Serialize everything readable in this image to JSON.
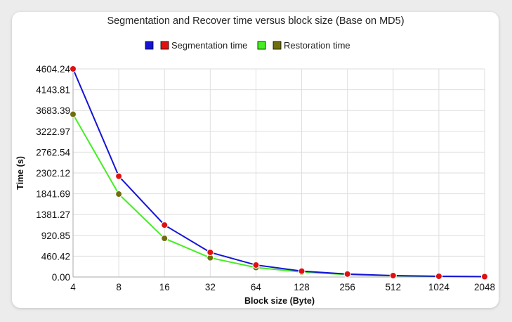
{
  "chart_data": {
    "type": "line",
    "title": "Segmentation and Recover time versus block size (Base on MD5)",
    "xlabel": "Block size (Byte)",
    "ylabel": "Time (s)",
    "categories": [
      "4",
      "8",
      "16",
      "32",
      "64",
      "128",
      "256",
      "512",
      "1024",
      "2048"
    ],
    "y_ticks": [
      "0.00",
      "460.42",
      "920.85",
      "1381.27",
      "1841.69",
      "2302.12",
      "2762.54",
      "3222.97",
      "3683.39",
      "4143.81",
      "4604.24"
    ],
    "ylim": [
      0,
      4604.24
    ],
    "grid": true,
    "legend_position": "top-center",
    "series": [
      {
        "name": "Segmentation time",
        "line_color": "#1414d4",
        "marker_color": "#e01010",
        "values": [
          4604.24,
          2230,
          1150,
          545,
          265,
          130,
          65,
          32,
          16,
          8
        ]
      },
      {
        "name": "Restoration time",
        "line_color": "#44ee22",
        "marker_color": "#6e6e0e",
        "values": [
          3600,
          1835,
          855,
          425,
          210,
          110,
          55,
          28,
          14,
          7
        ]
      }
    ]
  }
}
